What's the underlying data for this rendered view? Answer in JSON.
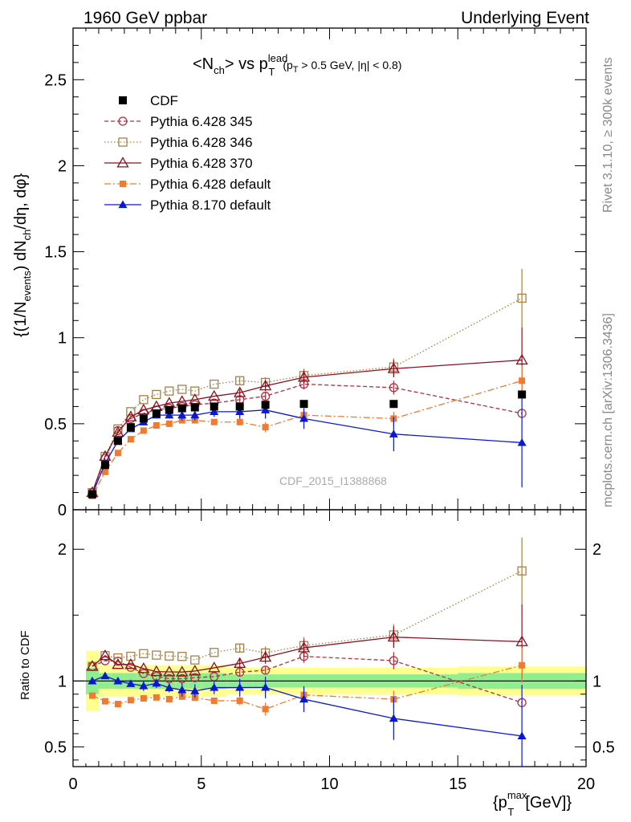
{
  "header": {
    "left": "1960 GeV ppbar",
    "right": "Underlying Event"
  },
  "side_labels": {
    "top": "Rivet 3.1.10, ≥ 300k events",
    "bottom": "mcplots.cern.ch [arXiv:1306.3436]"
  },
  "watermark": "CDF_2015_I1388868",
  "chart_data": {
    "type": "line",
    "title": "<N_ch> vs p_T^lead (p_T > 0.5 GeV, |η| < 0.8)",
    "xlabel": "{p_T^max [GeV]}",
    "ylabel": "{(1/N_events) dN_ch/dη, dφ}",
    "ratio_ylabel": "Ratio to CDF",
    "xlim": [
      0,
      20
    ],
    "ylim": [
      0,
      2.8
    ],
    "ratio_ylim": [
      0.35,
      2.3
    ],
    "x_ticks": [
      "0",
      "5",
      "10",
      "15",
      "20"
    ],
    "y_ticks": [
      "0",
      "0.5",
      "1",
      "1.5",
      "2",
      "2.5"
    ],
    "ratio_ticks": [
      "0.5",
      "1",
      "2"
    ],
    "legend_position": "top-left",
    "x": [
      0.75,
      1.25,
      1.75,
      2.25,
      2.75,
      3.25,
      3.75,
      4.25,
      4.75,
      5.5,
      6.5,
      7.5,
      9.0,
      12.5,
      17.5
    ],
    "data": {
      "name": "CDF",
      "values": [
        0.09,
        0.26,
        0.4,
        0.48,
        0.53,
        0.56,
        0.58,
        0.59,
        0.595,
        0.6,
        0.6,
        0.61,
        0.615,
        0.615,
        0.67
      ],
      "color": "#000000"
    },
    "band_edges": [
      0.5,
      1.0,
      1.5,
      2.0,
      2.5,
      3.0,
      3.5,
      4.0,
      4.5,
      5.0,
      6.0,
      7.0,
      8.0,
      10.0,
      15.0,
      20.0
    ],
    "band_yellow": [
      0.23,
      0.12,
      0.12,
      0.12,
      0.12,
      0.12,
      0.12,
      0.12,
      0.12,
      0.12,
      0.1,
      0.1,
      0.1,
      0.1,
      0.11
    ],
    "band_green": [
      0.1,
      0.06,
      0.06,
      0.06,
      0.06,
      0.06,
      0.06,
      0.06,
      0.06,
      0.06,
      0.05,
      0.05,
      0.05,
      0.05,
      0.06
    ],
    "series": [
      {
        "name": "Pythia 6.428 345",
        "color": "#b03040",
        "marker": "circle-open",
        "dash": "5,3",
        "values": [
          0.1,
          0.3,
          0.46,
          0.53,
          0.56,
          0.58,
          0.59,
          0.6,
          0.61,
          0.62,
          0.64,
          0.66,
          0.73,
          0.71,
          0.56
        ],
        "errors": [
          0,
          0,
          0,
          0,
          0,
          0,
          0,
          0,
          0,
          0,
          0.02,
          0.02,
          0.03,
          0.04,
          0
        ]
      },
      {
        "name": "Pythia 6.428 346",
        "color": "#a88040",
        "marker": "square-open",
        "dash": "1.5,2.5",
        "values": [
          0.1,
          0.31,
          0.47,
          0.57,
          0.64,
          0.67,
          0.69,
          0.7,
          0.69,
          0.73,
          0.75,
          0.74,
          0.78,
          0.83,
          1.23
        ],
        "errors": [
          0,
          0,
          0,
          0,
          0,
          0,
          0,
          0,
          0,
          0,
          0.02,
          0.03,
          0.04,
          0.05,
          0.17
        ]
      },
      {
        "name": "Pythia 6.428 370",
        "color": "#8b1020",
        "marker": "triangle-open",
        "dash": "",
        "values": [
          0.1,
          0.31,
          0.45,
          0.54,
          0.58,
          0.6,
          0.62,
          0.63,
          0.64,
          0.66,
          0.68,
          0.72,
          0.77,
          0.82,
          0.87
        ],
        "errors": [
          0,
          0,
          0,
          0,
          0,
          0,
          0,
          0,
          0,
          0,
          0.02,
          0.03,
          0.04,
          0.05,
          0.19
        ]
      },
      {
        "name": "Pythia 6.428 default",
        "color": "#f07a30",
        "marker": "square-filled",
        "dash": "8,3,2,3",
        "values": [
          0.08,
          0.22,
          0.33,
          0.41,
          0.46,
          0.49,
          0.5,
          0.52,
          0.52,
          0.51,
          0.51,
          0.48,
          0.55,
          0.53,
          0.75
        ],
        "errors": [
          0,
          0,
          0,
          0,
          0,
          0,
          0,
          0,
          0,
          0,
          0.02,
          0.03,
          0.03,
          0.04,
          0.09
        ]
      },
      {
        "name": "Pythia 8.170 default",
        "color": "#0a18d0",
        "marker": "triangle-filled",
        "dash": "",
        "values": [
          0.09,
          0.27,
          0.4,
          0.47,
          0.51,
          0.55,
          0.55,
          0.55,
          0.55,
          0.57,
          0.57,
          0.58,
          0.53,
          0.44,
          0.39
        ],
        "errors": [
          0,
          0,
          0,
          0,
          0.02,
          0.02,
          0.02,
          0.03,
          0.03,
          0.03,
          0.04,
          0.05,
          0.06,
          0.1,
          0.26
        ]
      }
    ]
  }
}
